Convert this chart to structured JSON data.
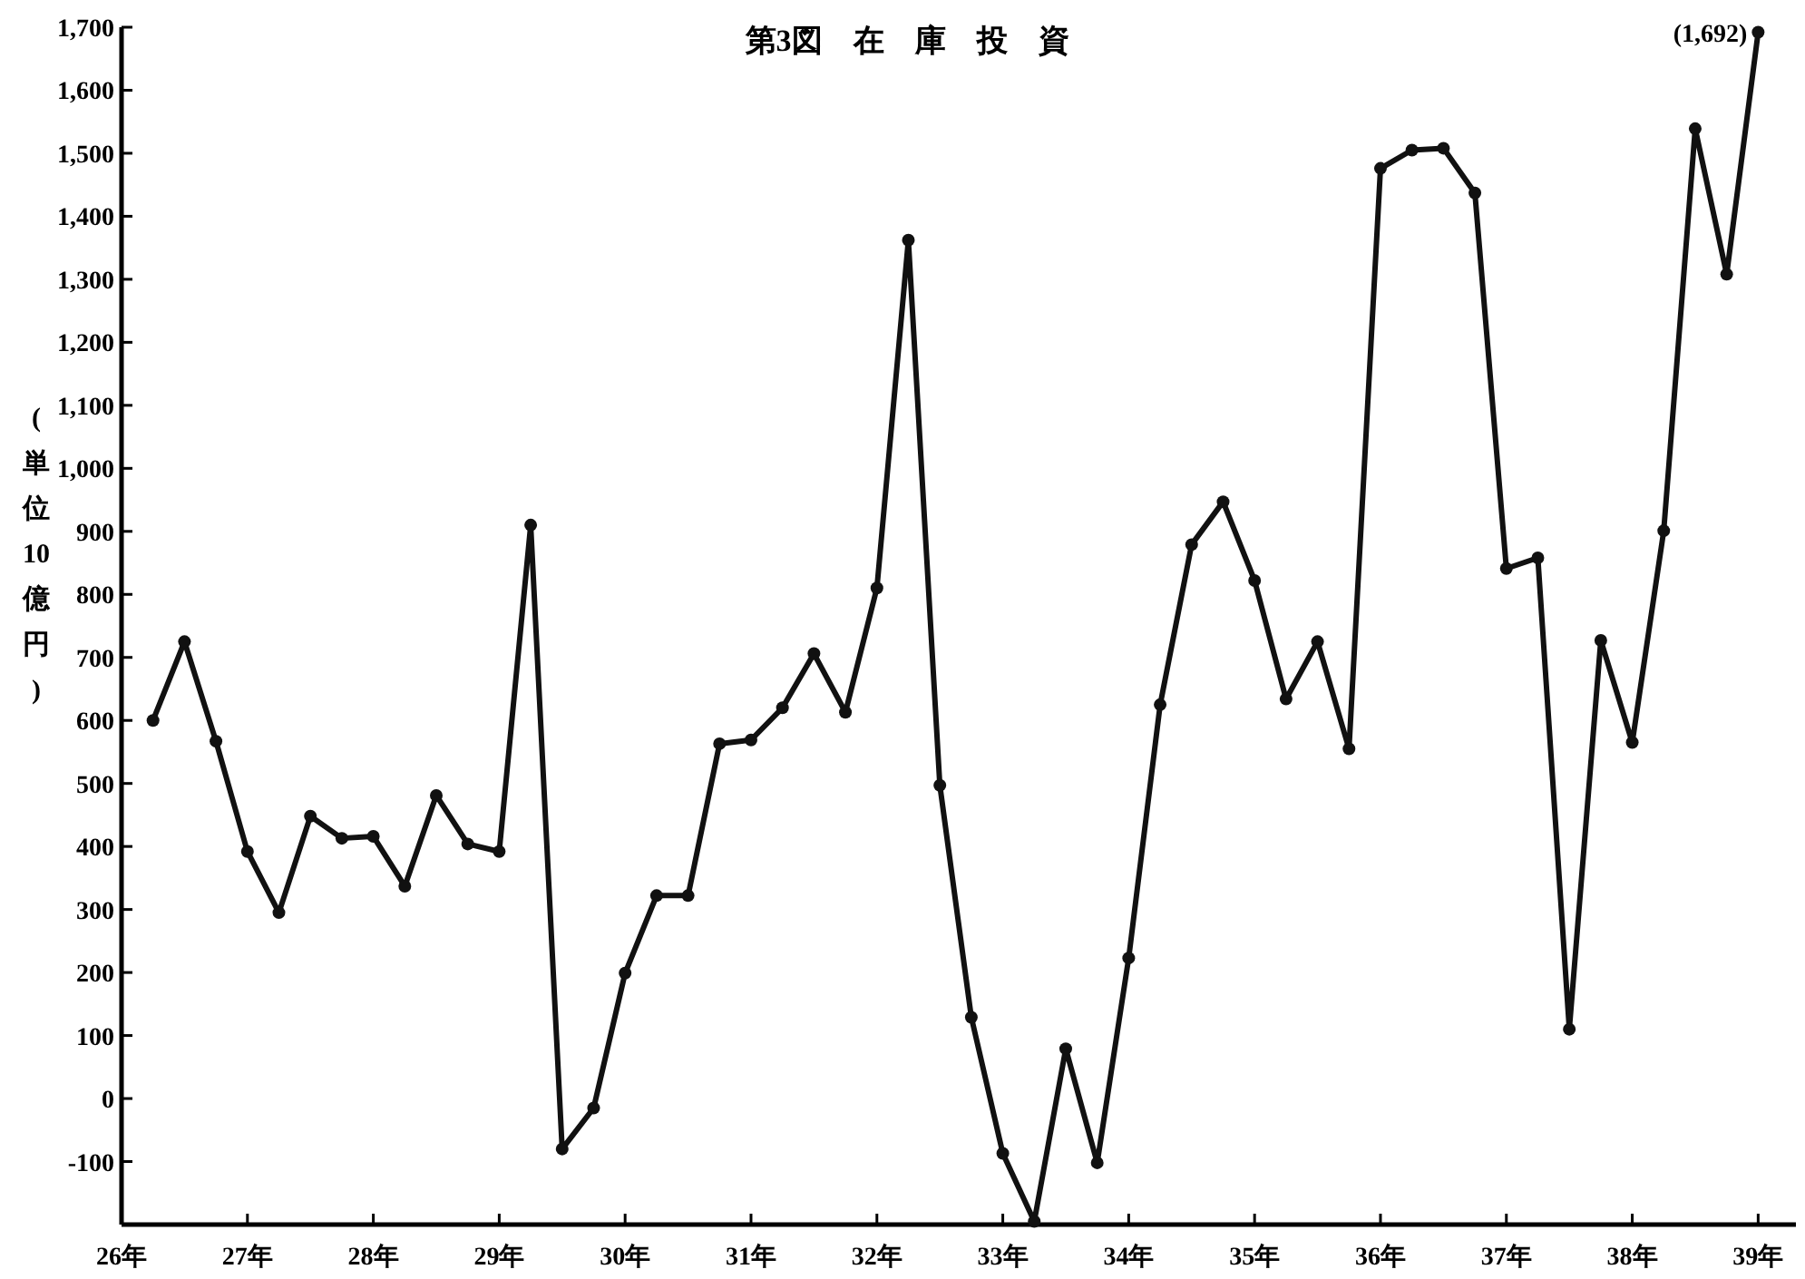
{
  "chart_data": {
    "type": "line",
    "title": "第3図　在　庫　投　資",
    "ylabel": "(単位10億円)",
    "x": [
      26.25,
      26.5,
      26.75,
      27,
      27.25,
      27.5,
      27.75,
      28,
      28.25,
      28.5,
      28.75,
      29,
      29.25,
      29.5,
      29.75,
      30,
      30.25,
      30.5,
      30.75,
      31,
      31.25,
      31.5,
      31.75,
      32,
      32.25,
      32.5,
      32.75,
      33,
      33.25,
      33.5,
      33.75,
      34,
      34.25,
      34.5,
      34.75,
      35,
      35.25,
      35.5,
      35.75,
      36,
      36.25,
      36.5,
      36.75,
      37,
      37.25,
      37.5,
      37.75,
      38,
      38.25,
      38.5,
      38.75,
      39
    ],
    "series": [
      {
        "color": "#111111",
        "values": [
          600,
          725,
          567,
          392,
          295,
          448,
          413,
          416,
          337,
          481,
          404,
          392,
          910,
          -80,
          -15,
          199,
          322,
          322,
          563,
          569,
          620,
          706,
          613,
          810,
          1362,
          497,
          129,
          -87,
          -195,
          79,
          -102,
          223,
          625,
          879,
          947,
          822,
          634,
          725,
          555,
          1476,
          1505,
          1508,
          1437,
          841,
          858,
          110,
          727,
          565,
          901,
          1539,
          1308,
          1692
        ],
        "value_labels": [
          null,
          null,
          null,
          null,
          null,
          null,
          null,
          null,
          null,
          null,
          null,
          null,
          null,
          null,
          null,
          null,
          null,
          null,
          null,
          null,
          null,
          null,
          null,
          null,
          null,
          null,
          null,
          null,
          null,
          null,
          null,
          null,
          null,
          null,
          null,
          null,
          null,
          null,
          null,
          null,
          null,
          null,
          null,
          null,
          null,
          null,
          null,
          null,
          null,
          null,
          null,
          "(1,692)"
        ]
      }
    ],
    "xlim": [
      26,
      39.3
    ],
    "xticks": [
      {
        "value": 26,
        "label": "26年"
      },
      {
        "value": 27,
        "label": "27年"
      },
      {
        "value": 28,
        "label": "28年"
      },
      {
        "value": 29,
        "label": "29年"
      },
      {
        "value": 30,
        "label": "30年"
      },
      {
        "value": 31,
        "label": "31年"
      },
      {
        "value": 32,
        "label": "32年"
      },
      {
        "value": 33,
        "label": "33年"
      },
      {
        "value": 34,
        "label": "34年"
      },
      {
        "value": 35,
        "label": "35年"
      },
      {
        "value": 36,
        "label": "36年"
      },
      {
        "value": 37,
        "label": "37年"
      },
      {
        "value": 38,
        "label": "38年"
      },
      {
        "value": 39,
        "label": "39年"
      }
    ],
    "ylim": [
      -200,
      1700
    ],
    "yticks": [
      -100,
      0,
      100,
      200,
      300,
      400,
      500,
      600,
      700,
      800,
      900,
      {
        "value": 1000,
        "label": "1,000"
      },
      {
        "value": 1100,
        "label": "1,100"
      },
      {
        "value": 1200,
        "label": "1,200"
      },
      {
        "value": 1300,
        "label": "1,300"
      },
      {
        "value": 1400,
        "label": "1,400"
      },
      {
        "value": 1500,
        "label": "1,500"
      },
      {
        "value": 1600,
        "label": "1,600"
      },
      {
        "value": 1700,
        "label": "1,700"
      }
    ],
    "marker": "circle",
    "line_style": "solid",
    "grid": false
  }
}
